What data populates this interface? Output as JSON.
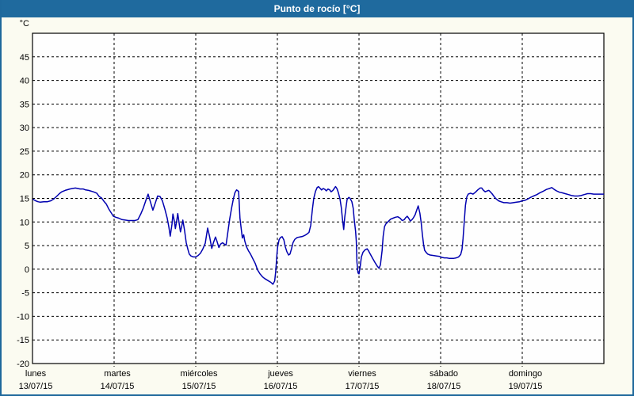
{
  "title": "Punto de rocío [°C]",
  "colors": {
    "titlebar_bg": "#1f6a9e",
    "titlebar_text": "#ffffff",
    "frame": "#1e689c",
    "page_bg": "#fbfbf1",
    "plot_bg": "#fefefe",
    "grid": "#000000",
    "axis": "#000000",
    "line": "#0000b0",
    "label_text": "#000000"
  },
  "chart_data": {
    "type": "line",
    "title": "Punto de rocío [°C]",
    "y_unit_label": "°C",
    "ylim": [
      -20,
      50
    ],
    "ytick_step": 5,
    "yticks_labeled": [
      45,
      40,
      35,
      30,
      25,
      20,
      15,
      10,
      5,
      0,
      -5,
      -10,
      -15,
      -20
    ],
    "x_hours_total": 168,
    "grid": "dashed",
    "legend": "none",
    "x_days": [
      {
        "weekday": "lunes",
        "date": "13/07/15"
      },
      {
        "weekday": "martes",
        "date": "14/07/15"
      },
      {
        "weekday": "miércoles",
        "date": "15/07/15"
      },
      {
        "weekday": "jueves",
        "date": "16/07/15"
      },
      {
        "weekday": "viernes",
        "date": "17/07/15"
      },
      {
        "weekday": "sábado",
        "date": "18/07/15"
      },
      {
        "weekday": "domingo",
        "date": "19/07/15"
      }
    ],
    "series": [
      {
        "name": "Punto de rocío",
        "color": "#0000b0",
        "points": [
          [
            0.2,
            14.8
          ],
          [
            0.9,
            14.5
          ],
          [
            1.6,
            14.3
          ],
          [
            2.3,
            14.2
          ],
          [
            3.3,
            14.3
          ],
          [
            4.4,
            14.3
          ],
          [
            5.4,
            14.5
          ],
          [
            6.3,
            14.9
          ],
          [
            7.2,
            15.5
          ],
          [
            7.9,
            16.0
          ],
          [
            8.6,
            16.4
          ],
          [
            9.6,
            16.7
          ],
          [
            11.0,
            17.0
          ],
          [
            12.6,
            17.2
          ],
          [
            14.0,
            17.0
          ],
          [
            14.9,
            17.0
          ],
          [
            15.6,
            16.8
          ],
          [
            16.5,
            16.7
          ],
          [
            17.9,
            16.4
          ],
          [
            18.9,
            16.1
          ],
          [
            19.6,
            15.4
          ],
          [
            20.3,
            15.1
          ],
          [
            21.0,
            14.4
          ],
          [
            21.7,
            13.8
          ],
          [
            22.4,
            12.8
          ],
          [
            23.1,
            12.0
          ],
          [
            23.8,
            11.2
          ],
          [
            24.5,
            11.0
          ],
          [
            25.4,
            10.8
          ],
          [
            26.3,
            10.5
          ],
          [
            27.3,
            10.4
          ],
          [
            28.2,
            10.3
          ],
          [
            29.1,
            10.3
          ],
          [
            30.1,
            10.3
          ],
          [
            31.0,
            10.5
          ],
          [
            31.9,
            11.8
          ],
          [
            32.6,
            13.0
          ],
          [
            33.3,
            14.5
          ],
          [
            34.0,
            15.9
          ],
          [
            34.7,
            14.2
          ],
          [
            35.4,
            12.5
          ],
          [
            36.1,
            14.0
          ],
          [
            36.8,
            15.5
          ],
          [
            37.5,
            15.4
          ],
          [
            38.2,
            14.5
          ],
          [
            38.9,
            12.8
          ],
          [
            39.6,
            10.8
          ],
          [
            40.1,
            8.9
          ],
          [
            40.5,
            7.0
          ],
          [
            41.0,
            9.5
          ],
          [
            41.3,
            11.7
          ],
          [
            41.7,
            10.2
          ],
          [
            42.0,
            8.6
          ],
          [
            42.4,
            10.3
          ],
          [
            42.7,
            11.8
          ],
          [
            43.1,
            9.8
          ],
          [
            43.5,
            7.9
          ],
          [
            43.9,
            9.2
          ],
          [
            44.2,
            10.4
          ],
          [
            44.7,
            8.3
          ],
          [
            45.2,
            5.6
          ],
          [
            45.7,
            4.2
          ],
          [
            46.1,
            3.2
          ],
          [
            46.6,
            2.8
          ],
          [
            47.3,
            2.6
          ],
          [
            48.0,
            2.6
          ],
          [
            48.7,
            2.9
          ],
          [
            49.4,
            3.4
          ],
          [
            50.1,
            4.3
          ],
          [
            50.8,
            5.5
          ],
          [
            51.5,
            8.7
          ],
          [
            52.1,
            6.8
          ],
          [
            52.7,
            4.4
          ],
          [
            53.2,
            5.6
          ],
          [
            53.8,
            6.8
          ],
          [
            54.3,
            5.8
          ],
          [
            54.8,
            4.6
          ],
          [
            55.3,
            5.3
          ],
          [
            55.9,
            5.6
          ],
          [
            56.4,
            5.3
          ],
          [
            56.9,
            5.1
          ],
          [
            57.4,
            7.6
          ],
          [
            58.0,
            10.7
          ],
          [
            58.6,
            13.2
          ],
          [
            59.1,
            15.0
          ],
          [
            59.5,
            16.2
          ],
          [
            60.0,
            16.8
          ],
          [
            60.6,
            16.5
          ],
          [
            61.0,
            10.8
          ],
          [
            61.4,
            8.4
          ],
          [
            61.7,
            6.6
          ],
          [
            62.1,
            7.3
          ],
          [
            62.4,
            6.0
          ],
          [
            62.9,
            4.8
          ],
          [
            63.5,
            3.9
          ],
          [
            64.1,
            3.2
          ],
          [
            64.8,
            2.2
          ],
          [
            65.5,
            1.2
          ],
          [
            66.2,
            -0.2
          ],
          [
            66.9,
            -1.0
          ],
          [
            67.6,
            -1.6
          ],
          [
            68.3,
            -2.0
          ],
          [
            69.2,
            -2.4
          ],
          [
            70.1,
            -2.8
          ],
          [
            70.7,
            -3.2
          ],
          [
            71.2,
            -2.5
          ],
          [
            71.5,
            -0.5
          ],
          [
            71.9,
            3.5
          ],
          [
            72.1,
            4.8
          ],
          [
            72.5,
            6.2
          ],
          [
            72.9,
            6.7
          ],
          [
            73.4,
            6.9
          ],
          [
            73.9,
            6.2
          ],
          [
            74.3,
            4.8
          ],
          [
            74.8,
            3.7
          ],
          [
            75.3,
            3.0
          ],
          [
            75.7,
            3.2
          ],
          [
            76.2,
            4.4
          ],
          [
            76.6,
            5.6
          ],
          [
            77.1,
            6.3
          ],
          [
            77.8,
            6.7
          ],
          [
            78.5,
            6.8
          ],
          [
            79.2,
            6.9
          ],
          [
            79.9,
            7.1
          ],
          [
            80.6,
            7.4
          ],
          [
            81.3,
            7.8
          ],
          [
            81.8,
            9.3
          ],
          [
            82.3,
            12.7
          ],
          [
            82.7,
            15.0
          ],
          [
            83.2,
            16.5
          ],
          [
            83.7,
            17.3
          ],
          [
            84.1,
            17.5
          ],
          [
            84.6,
            17.1
          ],
          [
            85.0,
            16.8
          ],
          [
            85.5,
            17.1
          ],
          [
            86.0,
            16.9
          ],
          [
            86.4,
            16.6
          ],
          [
            86.9,
            17.0
          ],
          [
            87.4,
            16.8
          ],
          [
            87.8,
            16.4
          ],
          [
            88.3,
            16.7
          ],
          [
            88.8,
            17.2
          ],
          [
            89.1,
            17.5
          ],
          [
            89.5,
            17.1
          ],
          [
            89.9,
            16.3
          ],
          [
            90.4,
            14.9
          ],
          [
            90.8,
            13.0
          ],
          [
            91.1,
            10.8
          ],
          [
            91.5,
            8.4
          ],
          [
            91.8,
            11.0
          ],
          [
            92.2,
            13.2
          ],
          [
            92.5,
            14.8
          ],
          [
            93.0,
            15.2
          ],
          [
            93.4,
            15.0
          ],
          [
            93.9,
            14.3
          ],
          [
            94.3,
            12.9
          ],
          [
            94.6,
            10.5
          ],
          [
            95.0,
            8.0
          ],
          [
            95.2,
            5.9
          ],
          [
            95.4,
            1.5
          ],
          [
            95.7,
            -0.8
          ],
          [
            96.0,
            -1.0
          ],
          [
            96.4,
            0.8
          ],
          [
            96.7,
            2.6
          ],
          [
            97.2,
            3.6
          ],
          [
            97.8,
            4.1
          ],
          [
            98.4,
            4.3
          ],
          [
            98.8,
            3.9
          ],
          [
            99.3,
            3.2
          ],
          [
            100.0,
            2.3
          ],
          [
            100.7,
            1.4
          ],
          [
            101.4,
            0.6
          ],
          [
            101.9,
            0.2
          ],
          [
            102.3,
            0.9
          ],
          [
            102.8,
            4.0
          ],
          [
            103.1,
            7.0
          ],
          [
            103.5,
            9.0
          ],
          [
            103.9,
            9.6
          ],
          [
            104.6,
            10.1
          ],
          [
            105.3,
            10.6
          ],
          [
            106.0,
            10.8
          ],
          [
            106.7,
            11.0
          ],
          [
            107.4,
            11.1
          ],
          [
            108.1,
            10.8
          ],
          [
            108.7,
            10.3
          ],
          [
            109.3,
            10.5
          ],
          [
            109.7,
            10.9
          ],
          [
            110.2,
            11.2
          ],
          [
            110.6,
            10.8
          ],
          [
            111.1,
            10.2
          ],
          [
            111.6,
            10.5
          ],
          [
            112.0,
            10.9
          ],
          [
            112.5,
            11.5
          ],
          [
            113.0,
            12.6
          ],
          [
            113.4,
            13.4
          ],
          [
            113.9,
            11.9
          ],
          [
            114.3,
            9.8
          ],
          [
            114.6,
            7.6
          ],
          [
            115.0,
            5.2
          ],
          [
            115.3,
            4.0
          ],
          [
            115.8,
            3.5
          ],
          [
            116.2,
            3.2
          ],
          [
            116.9,
            3.0
          ],
          [
            117.9,
            2.9
          ],
          [
            118.8,
            2.8
          ],
          [
            119.7,
            2.7
          ],
          [
            120.4,
            2.5
          ],
          [
            121.1,
            2.4
          ],
          [
            121.8,
            2.4
          ],
          [
            122.5,
            2.3
          ],
          [
            123.2,
            2.3
          ],
          [
            123.9,
            2.3
          ],
          [
            124.6,
            2.4
          ],
          [
            125.3,
            2.6
          ],
          [
            125.9,
            3.1
          ],
          [
            126.3,
            4.2
          ],
          [
            126.6,
            6.5
          ],
          [
            127.0,
            10.5
          ],
          [
            127.3,
            13.5
          ],
          [
            127.7,
            15.3
          ],
          [
            128.1,
            15.9
          ],
          [
            128.8,
            16.1
          ],
          [
            129.5,
            15.9
          ],
          [
            130.2,
            16.3
          ],
          [
            130.9,
            16.8
          ],
          [
            131.6,
            17.2
          ],
          [
            132.1,
            17.2
          ],
          [
            132.5,
            16.8
          ],
          [
            133.1,
            16.4
          ],
          [
            133.7,
            16.6
          ],
          [
            134.2,
            16.7
          ],
          [
            134.6,
            16.4
          ],
          [
            135.1,
            16.0
          ],
          [
            135.7,
            15.4
          ],
          [
            136.3,
            14.9
          ],
          [
            137.0,
            14.5
          ],
          [
            137.7,
            14.3
          ],
          [
            138.6,
            14.1
          ],
          [
            139.5,
            14.1
          ],
          [
            140.4,
            14.0
          ],
          [
            141.4,
            14.1
          ],
          [
            142.3,
            14.2
          ],
          [
            143.2,
            14.3
          ],
          [
            144.1,
            14.5
          ],
          [
            144.8,
            14.6
          ],
          [
            145.7,
            14.9
          ],
          [
            146.4,
            15.2
          ],
          [
            147.3,
            15.5
          ],
          [
            148.3,
            15.8
          ],
          [
            149.2,
            16.2
          ],
          [
            150.1,
            16.5
          ],
          [
            151.1,
            16.9
          ],
          [
            152.0,
            17.1
          ],
          [
            152.7,
            17.3
          ],
          [
            153.4,
            16.9
          ],
          [
            154.1,
            16.6
          ],
          [
            155.0,
            16.3
          ],
          [
            155.7,
            16.2
          ],
          [
            156.6,
            16.0
          ],
          [
            157.6,
            15.8
          ],
          [
            158.5,
            15.6
          ],
          [
            159.4,
            15.5
          ],
          [
            160.4,
            15.5
          ],
          [
            161.3,
            15.6
          ],
          [
            162.2,
            15.8
          ],
          [
            163.2,
            16.0
          ],
          [
            164.1,
            16.0
          ],
          [
            165.0,
            15.9
          ],
          [
            166.0,
            15.9
          ],
          [
            166.9,
            15.9
          ],
          [
            167.9,
            15.9
          ]
        ]
      }
    ]
  }
}
